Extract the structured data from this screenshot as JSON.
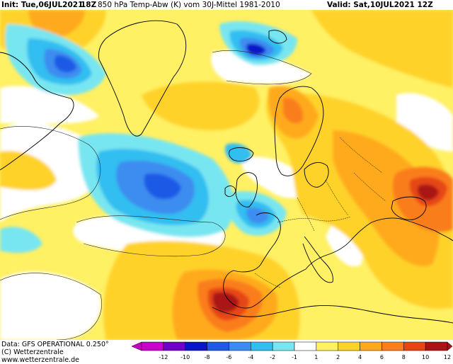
{
  "header": {
    "init": "Init: Tue,06JUL2021",
    "run": "18Z",
    "field": "850 hPa Temp-Abw (K) vom 30J-Mittel 1981-2010",
    "valid": "Valid: Sat,10JUL2021 12Z"
  },
  "footer": {
    "data": "Data: GFS OPERATIONAL 0.250°",
    "copyright": "(C) Wetterzentrale",
    "url": "www.wetterzentrale.de"
  },
  "legend": {
    "ticks": [
      "-12",
      "-10",
      "-8",
      "-6",
      "-4",
      "-2",
      "-1",
      "1",
      "2",
      "4",
      "6",
      "8",
      "10",
      "12"
    ],
    "colors": [
      "#c800c8",
      "#6e00c8",
      "#0a14c8",
      "#1e5ae6",
      "#3c8cf0",
      "#32bef0",
      "#78e6f0",
      "#ffffff",
      "#fff064",
      "#ffd22a",
      "#ffaa1e",
      "#fa7d1e",
      "#e64614",
      "#aa1414"
    ]
  },
  "map_data": {
    "type": "filled-contour-anomaly",
    "variable": "850 hPa temperature anomaly",
    "units": "K",
    "features": [
      {
        "name": "warm-anomaly-southern-iberia",
        "peak_class": "10 to 12"
      },
      {
        "name": "warm-anomaly-black-sea-turkey",
        "peak_class": "10 to 12"
      },
      {
        "name": "warm-anomaly-scandinavia",
        "peak_class": "6 to 8"
      },
      {
        "name": "cold-anomaly-north-atlantic",
        "peak_class": "-6 to -8"
      },
      {
        "name": "cold-anomaly-west-greenland",
        "peak_class": "-6 to -8"
      },
      {
        "name": "cold-anomaly-barents-sea",
        "peak_class": "-8 to -10"
      },
      {
        "name": "cold-anomaly-bay-of-biscay-france",
        "peak_class": "-4 to -6"
      }
    ]
  }
}
